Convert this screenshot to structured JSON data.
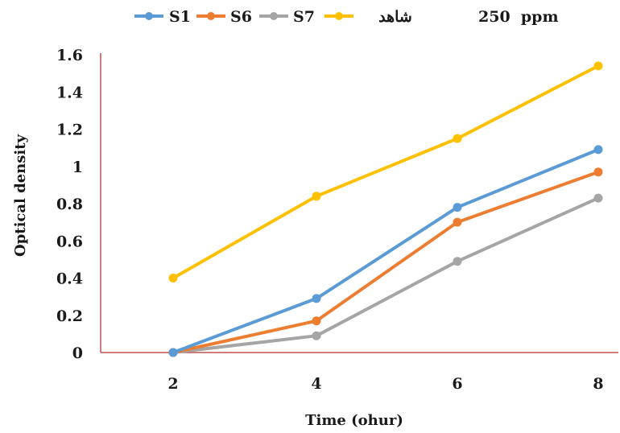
{
  "chart_data": {
    "type": "line",
    "annotation": "250  ppm",
    "xlabel": "Time (ohur)",
    "ylabel": "Optical density",
    "x": [
      2,
      4,
      6,
      8
    ],
    "x_tick_labels": [
      "2",
      "4",
      "6",
      "8"
    ],
    "ylim": [
      0,
      1.6
    ],
    "y_ticks": [
      0,
      0.2,
      0.4,
      0.6,
      0.8,
      1,
      1.2,
      1.4,
      1.6
    ],
    "y_tick_labels": [
      "0",
      "0.2",
      "0.4",
      "0.6",
      "0.8",
      "1",
      "1.2",
      "1.4",
      "1.6"
    ],
    "grid": false,
    "legend_position": "top",
    "series": [
      {
        "name": "S1",
        "color": "#5b9bd5",
        "values": [
          0,
          0.29,
          0.78,
          1.09
        ]
      },
      {
        "name": "S6",
        "color": "#ed7d31",
        "values": [
          0,
          0.17,
          0.7,
          0.97
        ]
      },
      {
        "name": "S7",
        "color": "#a5a5a5",
        "values": [
          0,
          0.09,
          0.49,
          0.83
        ]
      },
      {
        "name": "شاهد",
        "color": "#ffc000",
        "values": [
          0.4,
          0.84,
          1.15,
          1.54
        ]
      }
    ],
    "axis_color": "#c0504d"
  }
}
